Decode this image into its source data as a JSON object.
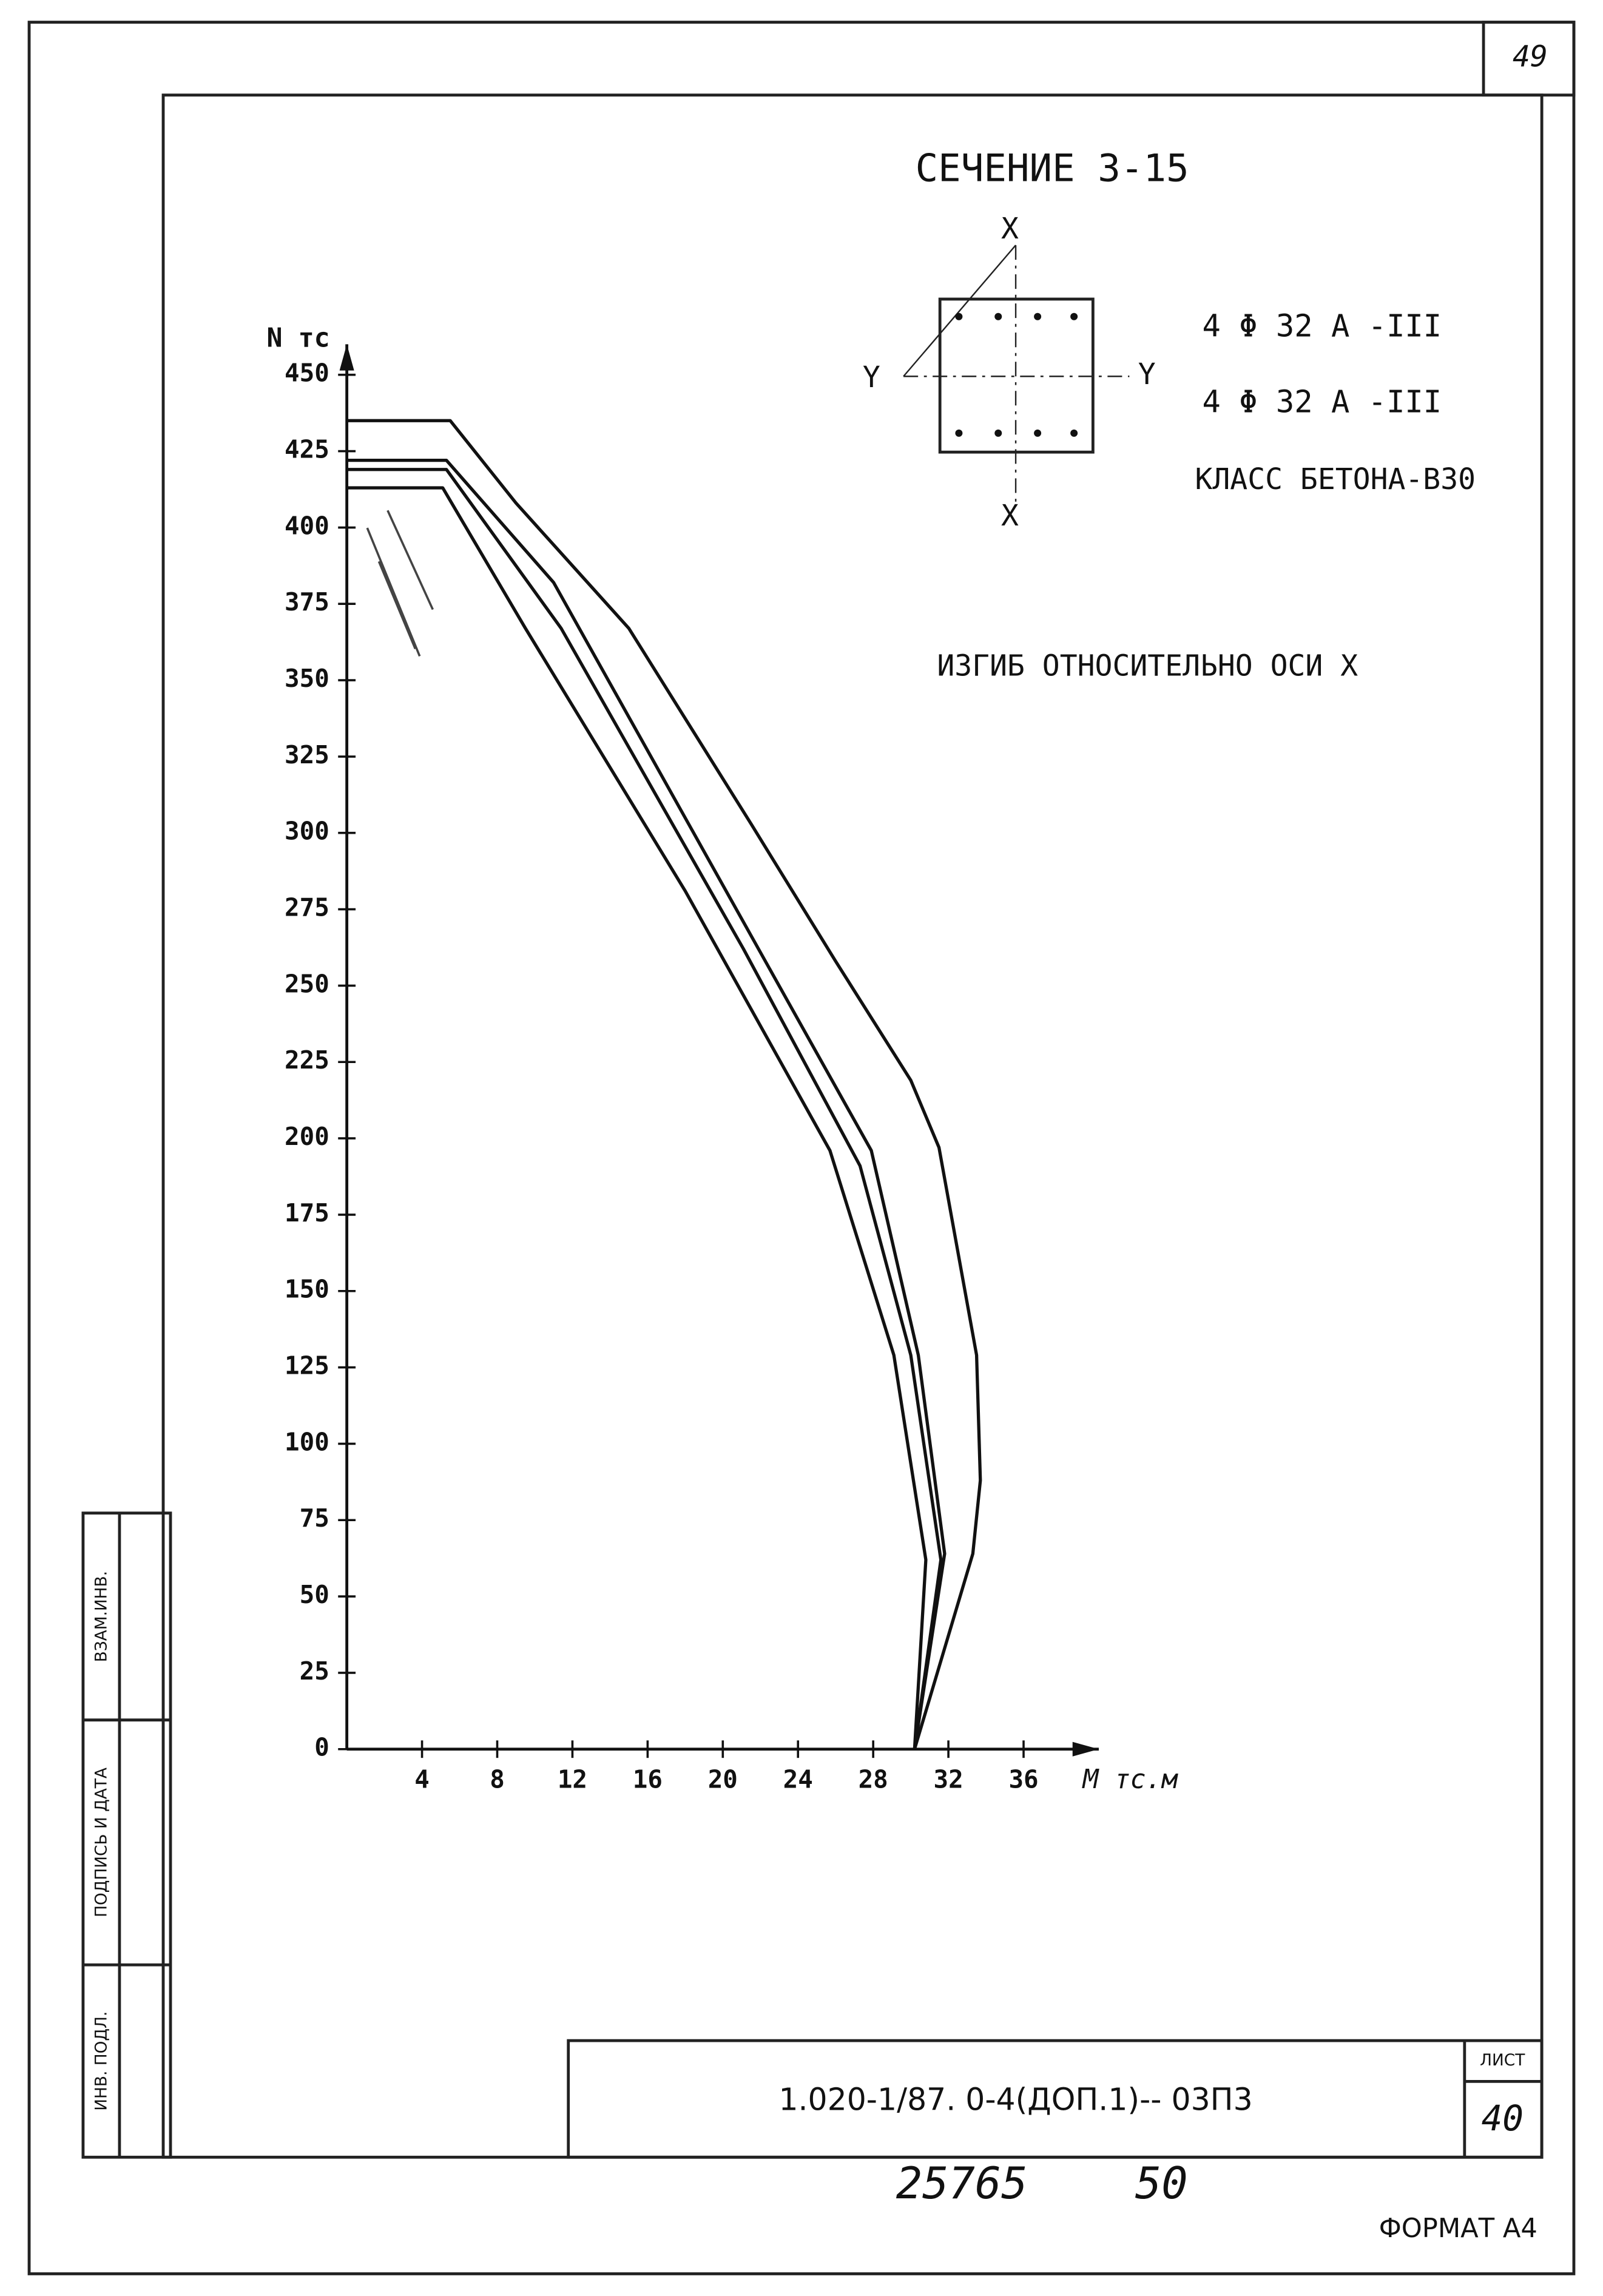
{
  "sheet_number_top": "49",
  "section_title": "СЕЧЕНИЕ 3-15",
  "section_axes": {
    "x": "X",
    "y": "Y"
  },
  "reinforcement": [
    "4 Φ 32 A -III",
    "4 Φ 32 A -III"
  ],
  "concrete_class": "КЛАСС БЕТОНА-В30",
  "bending_note": "ИЗГИБ ОТНОСИТЕЛЬНО ОСИ X",
  "chart_data": {
    "type": "line",
    "y_label": "N тс",
    "x_label": "M тс.м",
    "xlim": [
      0,
      40
    ],
    "ylim": [
      0,
      460
    ],
    "xticks": [
      4,
      8,
      12,
      16,
      20,
      24,
      28,
      32,
      36
    ],
    "yticks": [
      0,
      25,
      50,
      75,
      100,
      125,
      150,
      175,
      200,
      225,
      250,
      275,
      300,
      325,
      350,
      375,
      400,
      425,
      450
    ],
    "series": [
      {
        "color": "#111111",
        "x": [
          0,
          5.5,
          9,
          15,
          21.5,
          26,
          30,
          31.5,
          33.5,
          33.7,
          33.3,
          30.2
        ],
        "values": [
          435,
          435,
          408,
          367,
          303,
          258,
          219,
          197,
          129,
          88,
          64,
          0
        ]
      },
      {
        "color": "#111111",
        "x": [
          0,
          5.3,
          11,
          21.9,
          27.9,
          30.4,
          31.8,
          30.2
        ],
        "values": [
          422,
          422,
          382,
          262,
          196,
          129,
          64,
          0
        ]
      },
      {
        "color": "#111111",
        "x": [
          0,
          5.3,
          11.4,
          21.1,
          27.3,
          30,
          31.6,
          30.2
        ],
        "values": [
          419,
          419,
          367,
          262,
          191,
          129,
          62,
          0
        ]
      },
      {
        "color": "#111111",
        "x": [
          0,
          5.1,
          9.5,
          18,
          25.7,
          29.1,
          30.8,
          30.2
        ],
        "values": [
          413,
          413,
          367,
          281,
          196,
          129,
          62,
          0
        ]
      }
    ]
  },
  "side_stamp": [
    "ВЗАМ.ИНВ.",
    "ПОДПИСЬ И ДАТА",
    "ИНВ. ПОДЛ."
  ],
  "title_block": {
    "code": "1.020-1/87. 0-4(ДОП.1)-- 03П3",
    "sheet_label": "ЛИСТ",
    "sheet": "40"
  },
  "handwritten": [
    "25765",
    "50"
  ],
  "format": "ФОРМАТ А4"
}
